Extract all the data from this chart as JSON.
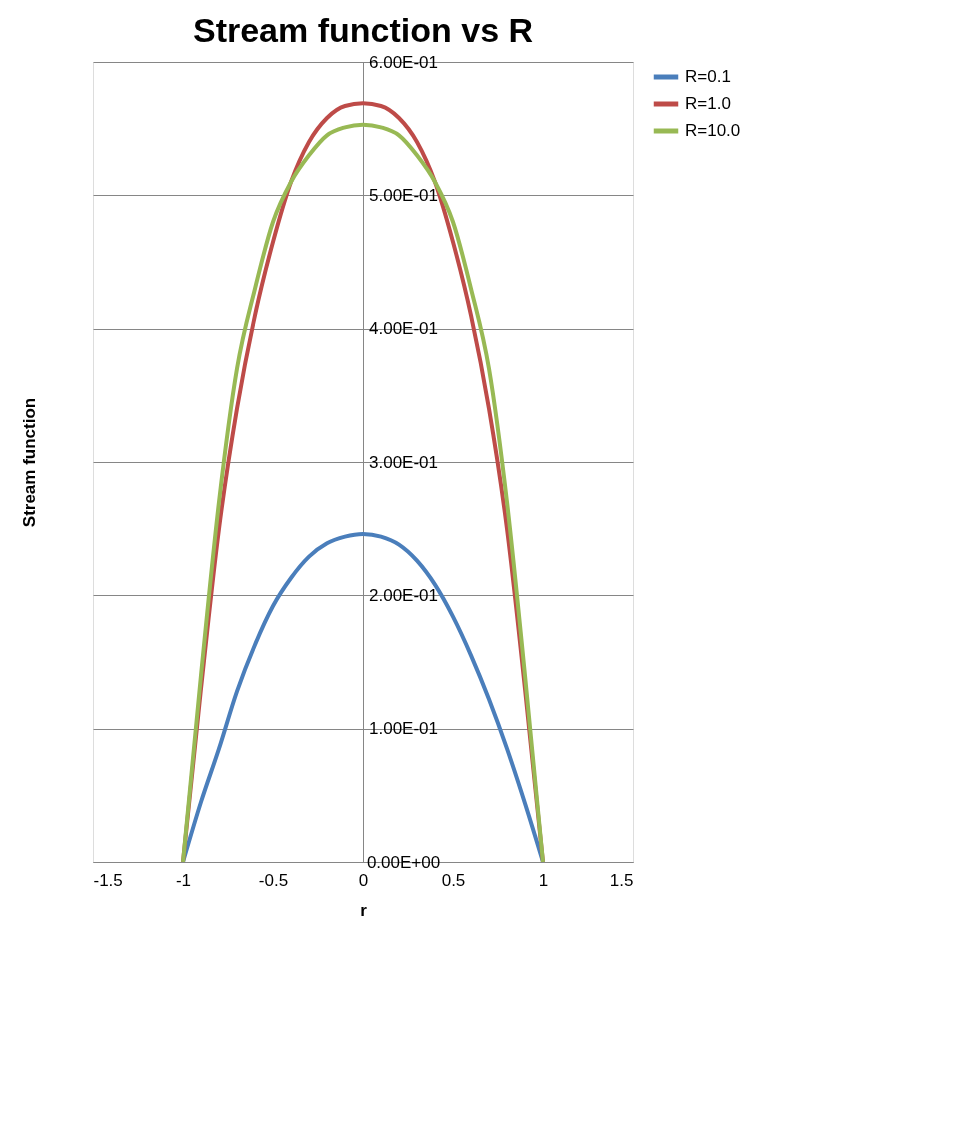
{
  "chart_data": {
    "type": "line",
    "title": "Stream function vs R",
    "xlabel": "r",
    "ylabel": "Stream function",
    "x": [
      -1,
      -0.9,
      -0.8,
      -0.7,
      -0.6,
      -0.5,
      -0.4,
      -0.3,
      -0.2,
      -0.1,
      0,
      0.1,
      0.2,
      0.3,
      0.4,
      0.5,
      0.6,
      0.7,
      0.8,
      0.9,
      1
    ],
    "series": [
      {
        "name": "R=0.1",
        "color": "#4a7ebb",
        "values": [
          0,
          0.045,
          0.085,
          0.128,
          0.163,
          0.192,
          0.213,
          0.229,
          0.239,
          0.244,
          0.246,
          0.244,
          0.238,
          0.226,
          0.208,
          0.184,
          0.155,
          0.122,
          0.085,
          0.044,
          0
        ]
      },
      {
        "name": "R=1.0",
        "color": "#be4b48",
        "values": [
          0,
          0.13,
          0.25,
          0.34,
          0.41,
          0.465,
          0.51,
          0.54,
          0.558,
          0.567,
          0.569,
          0.567,
          0.558,
          0.54,
          0.51,
          0.465,
          0.41,
          0.34,
          0.25,
          0.13,
          0
        ]
      },
      {
        "name": "R=10.0",
        "color": "#98b954",
        "values": [
          0,
          0.14,
          0.27,
          0.37,
          0.43,
          0.48,
          0.51,
          0.53,
          0.545,
          0.551,
          0.553,
          0.551,
          0.545,
          0.53,
          0.51,
          0.48,
          0.43,
          0.37,
          0.27,
          0.14,
          0
        ]
      }
    ],
    "xlim": [
      -1.5,
      1.5
    ],
    "xticks": [
      -1.5,
      -1,
      -0.5,
      0,
      0.5,
      1,
      1.5
    ],
    "ylim": [
      0,
      0.6
    ],
    "yticks": [
      {
        "value": 0,
        "label": "0.00E+00"
      },
      {
        "value": 0.1,
        "label": "1.00E-01"
      },
      {
        "value": 0.2,
        "label": "2.00E-01"
      },
      {
        "value": 0.3,
        "label": "3.00E-01"
      },
      {
        "value": 0.4,
        "label": "4.00E-01"
      },
      {
        "value": 0.5,
        "label": "5.00E-01"
      },
      {
        "value": 0.6,
        "label": "6.00E-01"
      }
    ],
    "grid": "y",
    "legend": "right",
    "marker": "none",
    "line_style": "solid"
  }
}
